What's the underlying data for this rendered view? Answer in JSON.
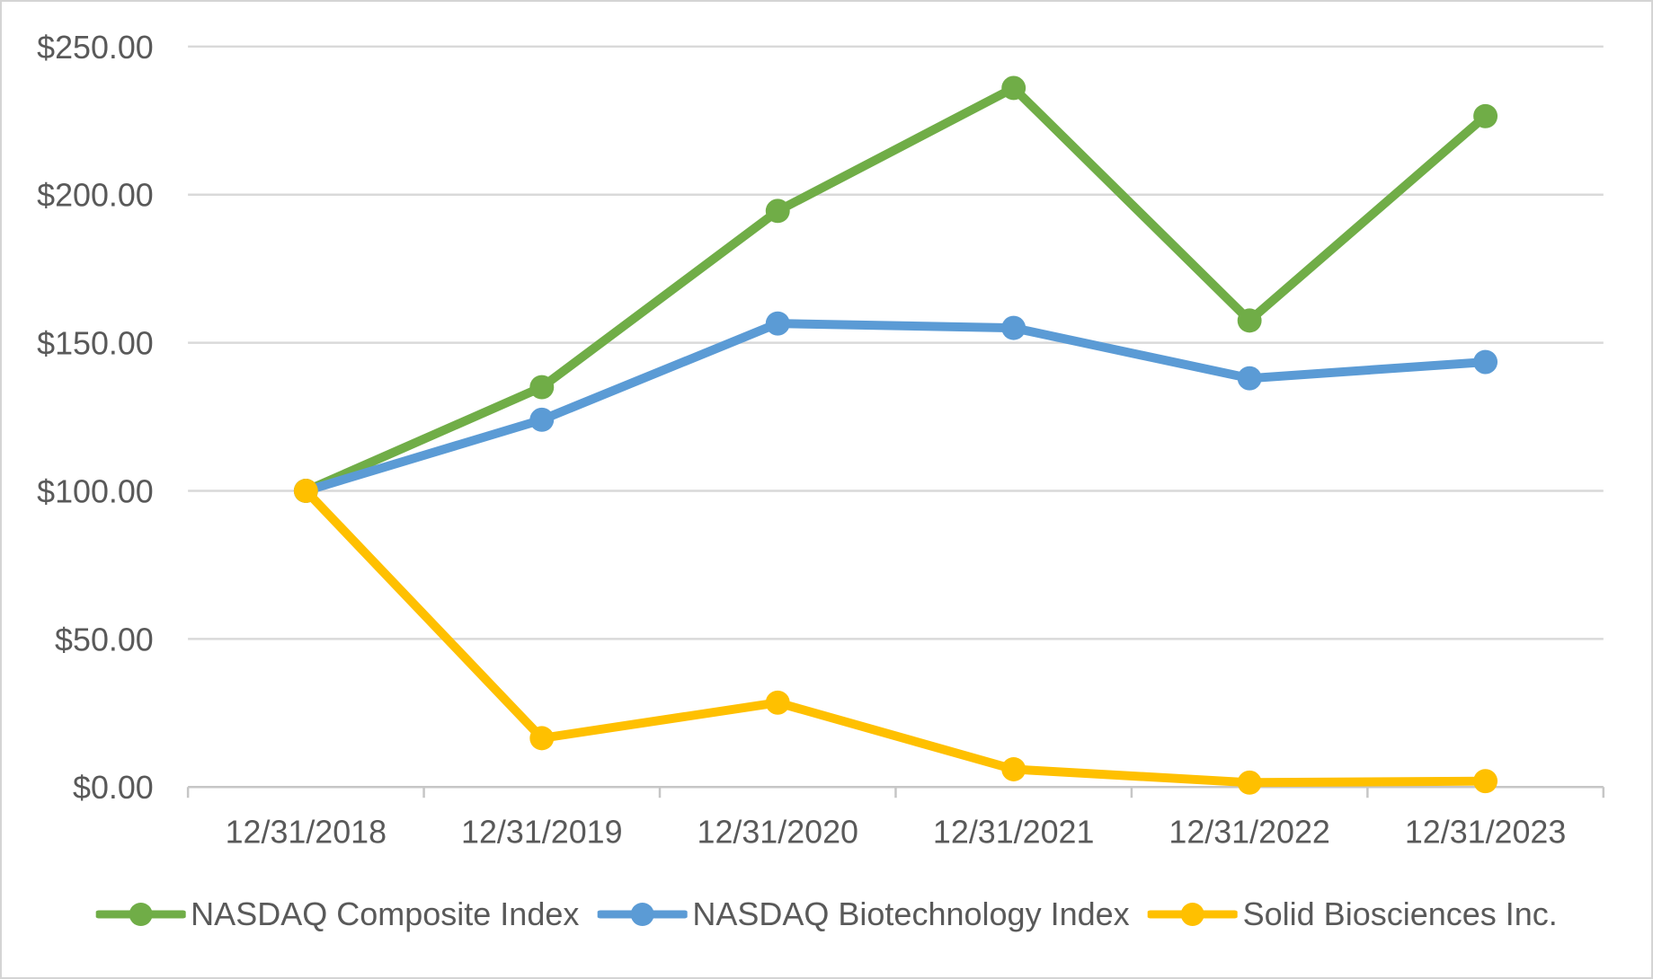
{
  "chart_data": {
    "type": "line",
    "title": "",
    "xlabel": "",
    "ylabel": "",
    "categories": [
      "12/31/2018",
      "12/31/2019",
      "12/31/2020",
      "12/31/2021",
      "12/31/2022",
      "12/31/2023"
    ],
    "series": [
      {
        "name": "NASDAQ Composite Index",
        "color": "#70AD47",
        "values": [
          100.0,
          135.0,
          194.5,
          236.0,
          157.5,
          226.5
        ]
      },
      {
        "name": "NASDAQ Biotechnology Index",
        "color": "#5B9BD5",
        "values": [
          100.0,
          124.0,
          156.5,
          155.0,
          138.0,
          143.5
        ]
      },
      {
        "name": "Solid Biosciences Inc.",
        "color": "#FFC000",
        "values": [
          100.0,
          16.5,
          28.5,
          6.0,
          1.5,
          2.0
        ]
      }
    ],
    "y_axis": {
      "min": 0,
      "max": 250,
      "step": 50,
      "tick_labels": [
        "$0.00",
        "$50.00",
        "$100.00",
        "$150.00",
        "$200.00",
        "$250.00"
      ]
    },
    "grid": true,
    "legend_position": "bottom",
    "colors": {
      "grid": "#D9D9D9",
      "axis": "#C6C6C6",
      "text": "#595959",
      "background": "#FFFFFF",
      "frame_border": "#D4D4D4"
    }
  }
}
